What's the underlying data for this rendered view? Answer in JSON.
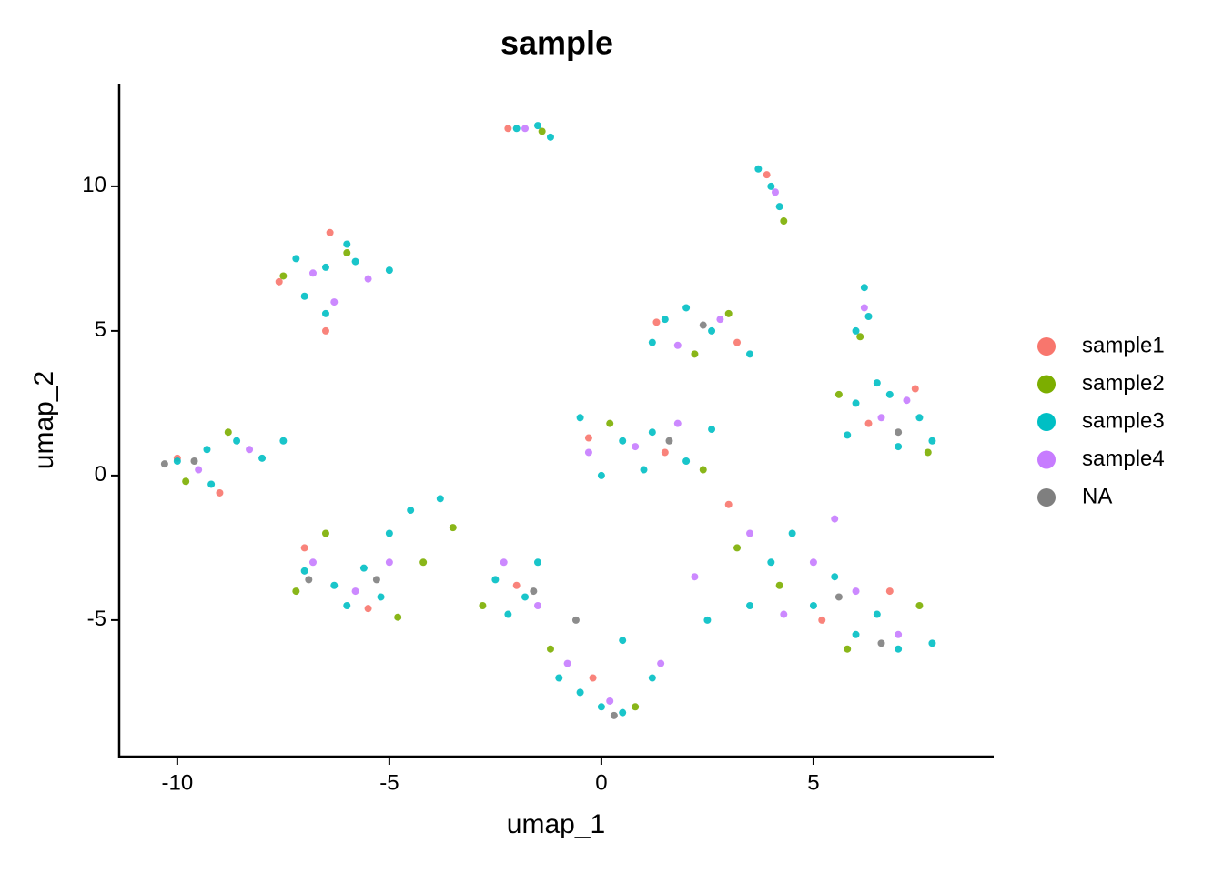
{
  "chart_data": {
    "type": "scatter",
    "title": "sample",
    "x_label": "umap_1",
    "y_label": "umap_2",
    "xlim": [
      -11.37,
      9.25
    ],
    "ylim": [
      -9.72,
      13.55
    ],
    "xticks": [
      -10,
      -5,
      0,
      5
    ],
    "yticks": [
      -5,
      0,
      5,
      10
    ],
    "grid": false,
    "legend": "right",
    "series": [
      {
        "name": "sample1",
        "color": "#F8766D",
        "x": [
          -2.2,
          3.9,
          -7.6,
          -6.4,
          -6.5,
          -10,
          -9,
          -7,
          -5.5,
          -2,
          1.3,
          3.2,
          1.5,
          -0.3,
          6.3,
          7.4,
          5.2,
          6.8,
          -0.2,
          3
        ],
        "y": [
          12,
          10.4,
          6.7,
          8.4,
          5,
          0.6,
          -0.6,
          -2.5,
          -4.6,
          -3.8,
          5.3,
          4.6,
          0.8,
          1.3,
          1.8,
          3,
          -5,
          -4,
          -7,
          -1
        ]
      },
      {
        "name": "sample2",
        "color": "#7CAE00",
        "x": [
          -1.4,
          4.3,
          -7.5,
          -6,
          -9.8,
          -8.8,
          -7.2,
          -6.5,
          -4.8,
          -4.2,
          -2.8,
          2.2,
          3,
          0.2,
          2.4,
          7.7,
          5.6,
          5.8,
          7.5,
          4.2,
          0.8,
          -1.2,
          3.2,
          6.1,
          -3.5
        ],
        "y": [
          11.9,
          8.8,
          6.9,
          7.7,
          -0.2,
          1.5,
          -4,
          -2,
          -4.9,
          -3,
          -4.5,
          4.2,
          5.6,
          1.8,
          0.2,
          0.8,
          2.8,
          -6,
          -4.5,
          -3.8,
          -8,
          -6,
          -2.5,
          4.8,
          -1.8
        ]
      },
      {
        "name": "sample3",
        "color": "#00BFC4",
        "x": [
          -2,
          -1.5,
          -1.2,
          3.7,
          4,
          4.2,
          -7.2,
          -6.5,
          -5.8,
          -5,
          -7,
          -6.5,
          -6,
          -10,
          -9.3,
          -8.6,
          -8,
          -9.2,
          -7.5,
          -7,
          -6.3,
          -5.6,
          -5,
          -4.5,
          -6,
          -5.2,
          -3.8,
          -2.5,
          -1.8,
          -1.5,
          -2.2,
          1.5,
          2,
          2.6,
          3.5,
          1.2,
          0,
          0.5,
          1.2,
          2,
          -0.5,
          1,
          2.6,
          6,
          6.8,
          7.5,
          7,
          5.8,
          7.8,
          6.5,
          4,
          5,
          6,
          7,
          7.8,
          4.5,
          5.5,
          3.5,
          6.5,
          2.5,
          0,
          -0.5,
          0.5,
          0.5,
          1.2,
          -1,
          6.2,
          6.3,
          6
        ],
        "y": [
          12,
          12.1,
          11.7,
          10.6,
          10,
          9.3,
          7.5,
          7.2,
          7.4,
          7.1,
          6.2,
          5.6,
          8,
          0.5,
          0.9,
          1.2,
          0.6,
          -0.3,
          1.2,
          -3.3,
          -3.8,
          -3.2,
          -2,
          -1.2,
          -4.5,
          -4.2,
          -0.8,
          -3.6,
          -4.2,
          -3,
          -4.8,
          5.4,
          5.8,
          5,
          4.2,
          4.6,
          0,
          1.2,
          1.5,
          0.5,
          2,
          0.2,
          1.6,
          2.5,
          2.8,
          2,
          1,
          1.4,
          1.2,
          3.2,
          -3,
          -4.5,
          -5.5,
          -6,
          -5.8,
          -2,
          -3.5,
          -4.5,
          -4.8,
          -5,
          -8,
          -7.5,
          -8.2,
          -5.7,
          -7,
          -7,
          6.5,
          5.5,
          5
        ]
      },
      {
        "name": "sample4",
        "color": "#C77CFF",
        "x": [
          -1.8,
          4.1,
          -6.8,
          -5.5,
          -6.3,
          -9.5,
          -8.3,
          -6.8,
          -5.8,
          -5,
          -1.5,
          -2.3,
          1.8,
          2.8,
          0.8,
          1.8,
          -0.3,
          6.6,
          7.2,
          5,
          6,
          4.3,
          7,
          3.5,
          0.2,
          -0.8,
          6.2,
          5.5,
          2.2,
          1.4
        ],
        "y": [
          12,
          9.8,
          7,
          6.8,
          6,
          0.2,
          0.9,
          -3,
          -4,
          -3,
          -4.5,
          -3,
          4.5,
          5.4,
          1,
          1.8,
          0.8,
          2,
          2.6,
          -3,
          -4,
          -4.8,
          -5.5,
          -2,
          -7.8,
          -6.5,
          5.8,
          -1.5,
          -3.5,
          -6.5
        ]
      },
      {
        "name": "NA",
        "color": "#7F7F7F",
        "x": [
          -10.3,
          -9.6,
          -6.9,
          -5.3,
          -1.6,
          2.4,
          1.6,
          7,
          5.6,
          6.6,
          0.3,
          -0.6
        ],
        "y": [
          0.4,
          0.5,
          -3.6,
          -3.6,
          -4,
          5.2,
          1.2,
          1.5,
          -4.2,
          -5.8,
          -8.3,
          -5
        ]
      }
    ]
  }
}
